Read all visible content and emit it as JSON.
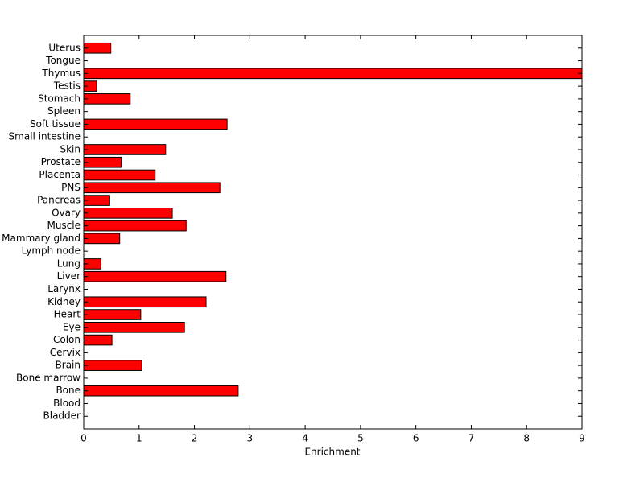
{
  "chart_data": {
    "type": "barh",
    "xlabel": "Enrichment",
    "categories": [
      "Uterus",
      "Tongue",
      "Thymus",
      "Testis",
      "Stomach",
      "Spleen",
      "Soft tissue",
      "Small intestine",
      "Skin",
      "Prostate",
      "Placenta",
      "PNS",
      "Pancreas",
      "Ovary",
      "Muscle",
      "Mammary gland",
      "Lymph node",
      "Lung",
      "Liver",
      "Larynx",
      "Kidney",
      "Heart",
      "Eye",
      "Colon",
      "Cervix",
      "Brain",
      "Bone marrow",
      "Bone",
      "Blood",
      "Bladder"
    ],
    "values": [
      0.49,
      0,
      9.0,
      0.23,
      0.84,
      0,
      2.59,
      0,
      1.48,
      0.68,
      1.29,
      2.46,
      0.47,
      1.6,
      1.85,
      0.65,
      0,
      0.31,
      2.57,
      0,
      2.21,
      1.03,
      1.82,
      0.51,
      0,
      1.05,
      0,
      2.79,
      0,
      0
    ],
    "color": "#ff0000",
    "xlim": [
      0,
      9
    ],
    "xticks": [
      0,
      1,
      2,
      3,
      4,
      5,
      6,
      7,
      8,
      9
    ]
  }
}
